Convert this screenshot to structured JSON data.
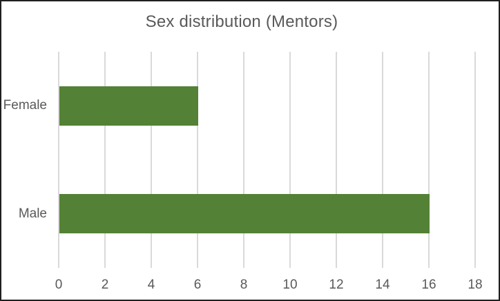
{
  "window": {
    "background": "#ffffff",
    "frame_color": "#1f1f1f"
  },
  "chart_data": {
    "type": "bar",
    "orientation": "horizontal",
    "title": "Sex distribution (Mentors)",
    "categories": [
      "Female",
      "Male"
    ],
    "values": [
      6,
      16
    ],
    "xlabel": "",
    "ylabel": "",
    "xlim": [
      0,
      18
    ],
    "xticks": [
      0,
      2,
      4,
      6,
      8,
      10,
      12,
      14,
      16,
      18
    ],
    "grid": "vertical gridlines on",
    "legend": "none",
    "colors": {
      "bar_fill": "#538135",
      "gridline": "#d9d9d9",
      "text": "#595959"
    }
  }
}
